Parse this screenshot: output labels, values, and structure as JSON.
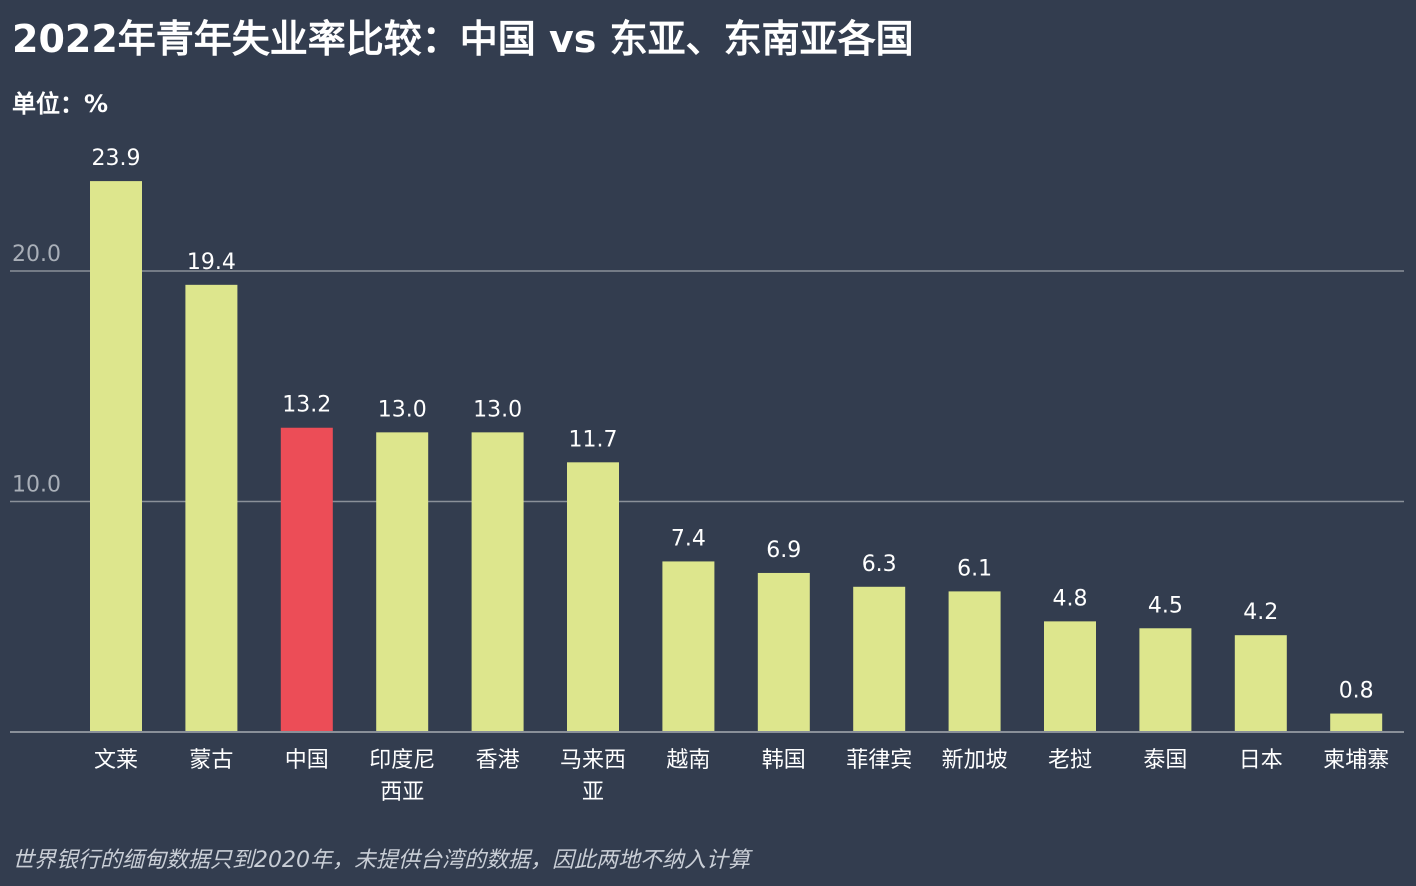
{
  "title": "2022年青年失业率比较：中国 vs 东亚、东南亚各国",
  "unit_label": "单位：%",
  "note": "世界银行的缅甸数据只到2020年，未提供台湾的数据，因此两地不纳入计算",
  "colors": {
    "background": "#333d4f",
    "bar": "#dde68d",
    "highlight": "#ec4d57",
    "grid": "#8a9099",
    "tick_text": "#a9afb8",
    "label_text": "#ffffff"
  },
  "chart_data": {
    "type": "bar",
    "categories": [
      "文莱",
      "蒙古",
      "中国",
      "印度尼西亚",
      "香港",
      "马来西亚",
      "越南",
      "韩国",
      "菲律宾",
      "新加坡",
      "老挝",
      "泰国",
      "日本",
      "柬埔寨"
    ],
    "category_lines": [
      [
        "文莱"
      ],
      [
        "蒙古"
      ],
      [
        "中国"
      ],
      [
        "印度尼",
        "西亚"
      ],
      [
        "香港"
      ],
      [
        "马来西",
        "亚"
      ],
      [
        "越南"
      ],
      [
        "韩国"
      ],
      [
        "菲律宾"
      ],
      [
        "新加坡"
      ],
      [
        "老挝"
      ],
      [
        "泰国"
      ],
      [
        "日本"
      ],
      [
        "柬埔寨"
      ]
    ],
    "values": [
      23.9,
      19.4,
      13.2,
      13.0,
      13.0,
      11.7,
      7.4,
      6.9,
      6.3,
      6.1,
      4.8,
      4.5,
      4.2,
      0.8
    ],
    "value_labels": [
      "23.9",
      "19.4",
      "13.2",
      "13.0",
      "13.0",
      "11.7",
      "7.4",
      "6.9",
      "6.3",
      "6.1",
      "4.8",
      "4.5",
      "4.2",
      "0.8"
    ],
    "highlight_category": "中国",
    "yticks": [
      10,
      20
    ],
    "ytick_labels": [
      "10.0",
      "20.0"
    ],
    "ylim": [
      0,
      25
    ],
    "grid": true,
    "legend": "none"
  }
}
